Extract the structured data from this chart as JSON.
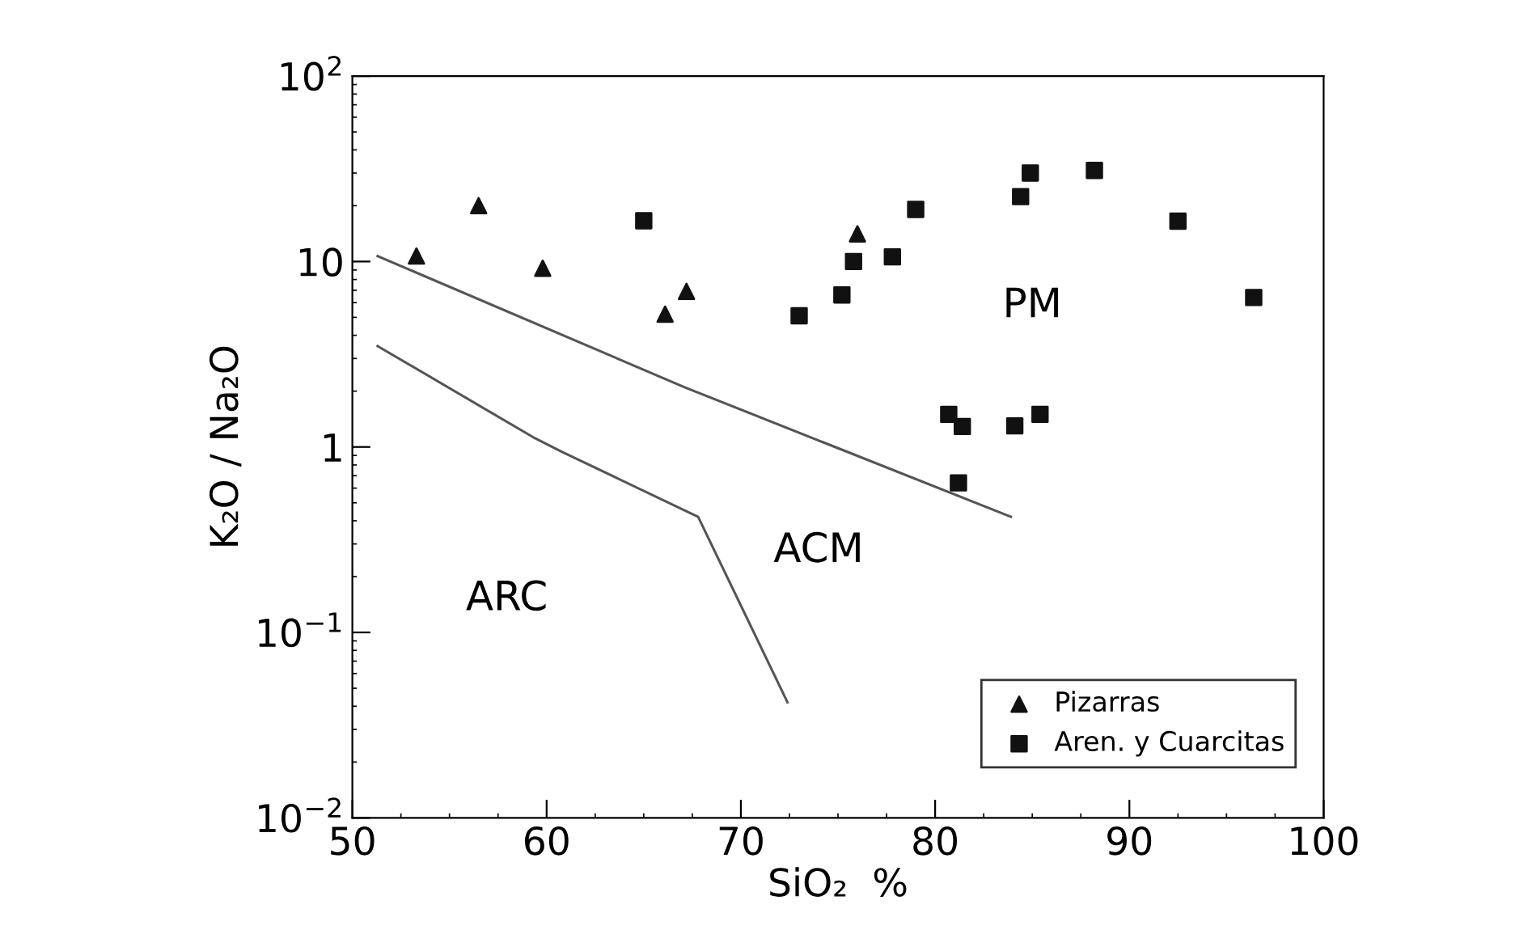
{
  "chart_data": {
    "type": "scatter",
    "xlabel": "SiO₂  %",
    "ylabel": "K₂O / Na₂O",
    "log": "y",
    "xlim": [
      50,
      100
    ],
    "xticks": [
      50,
      60,
      70,
      80,
      90,
      100
    ],
    "ylim": [
      0.01,
      100
    ],
    "yticks": [
      {
        "value": 0.01,
        "label": "10$^{−2}$"
      },
      {
        "value": 0.1,
        "label": "10$^{−1}$"
      },
      1,
      10,
      {
        "value": 100,
        "label": "10$^{2}$"
      }
    ],
    "grid": false,
    "legend": "bottom right",
    "series": [
      {
        "name": "Pizarras",
        "marker": "triangle",
        "color": "#111111",
        "x": [
          53.3,
          56.5,
          59.8,
          66.1,
          67.2,
          76.0
        ],
        "values": [
          10.7,
          20,
          9.2,
          5.2,
          6.9,
          14.1
        ]
      },
      {
        "name": "Aren. y Cuarcitas",
        "marker": "square",
        "color": "#111111",
        "x": [
          65.0,
          73.0,
          75.2,
          75.8,
          77.8,
          79.0,
          80.7,
          81.4,
          81.2,
          84.9,
          84.4,
          88.2,
          92.5,
          96.4,
          84.1,
          85.4
        ],
        "values": [
          16.6,
          5.1,
          6.6,
          10,
          10.6,
          19.1,
          1.5,
          1.29,
          0.64,
          30,
          22.4,
          31,
          16.5,
          6.4,
          1.3,
          1.5
        ]
      },
      {
        "type": "line",
        "marker": "none",
        "line_style": "solid",
        "color": "#555555",
        "x": [
          51.3,
          67.1,
          83.9
        ],
        "values": [
          10.7,
          2.1,
          0.42
        ]
      },
      {
        "type": "line",
        "marker": "none",
        "line_style": "solid",
        "color": "#555555",
        "x": [
          51.3,
          59.3,
          60.8,
          67.8,
          72.4
        ],
        "values": [
          3.5,
          1.13,
          0.94,
          0.42,
          0.042
        ]
      }
    ],
    "annotations": [
      "ARC",
      "ACM",
      "PM"
    ]
  }
}
